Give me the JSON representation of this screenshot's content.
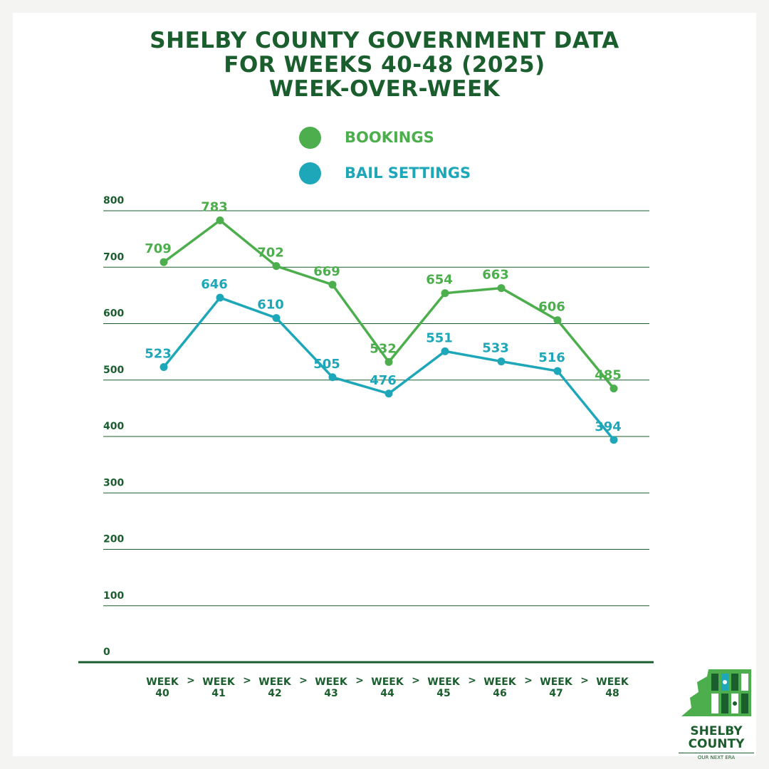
{
  "title": {
    "line1": "SHELBY COUNTY GOVERNMENT DATA",
    "line2": "FOR WEEKS 40-48 (2025)",
    "line3": "WEEK-OVER-WEEK"
  },
  "colors": {
    "bookings": "#4cae4c",
    "bail_settings": "#1ea7b8",
    "text_dark_green": "#1b5e2e",
    "grid": "#1b5e2e"
  },
  "legend": [
    {
      "label": "BOOKINGS",
      "color": "#4cae4c"
    },
    {
      "label": "BAIL SETTINGS",
      "color": "#1ea7b8"
    }
  ],
  "chart_data": {
    "type": "line",
    "categories": [
      [
        "WEEK",
        "40"
      ],
      [
        "WEEK",
        "41"
      ],
      [
        "WEEK",
        "42"
      ],
      [
        "WEEK",
        "43"
      ],
      [
        "WEEK",
        "44"
      ],
      [
        "WEEK",
        "45"
      ],
      [
        "WEEK",
        "46"
      ],
      [
        "WEEK",
        "47"
      ],
      [
        "WEEK",
        "48"
      ]
    ],
    "series": [
      {
        "name": "BOOKINGS",
        "color": "#4cae4c",
        "values": [
          709,
          783,
          702,
          669,
          532,
          654,
          663,
          606,
          485
        ]
      },
      {
        "name": "BAIL SETTINGS",
        "color": "#1ea7b8",
        "values": [
          523,
          646,
          610,
          505,
          476,
          551,
          533,
          516,
          394
        ]
      }
    ],
    "yticks": [
      0,
      100,
      200,
      300,
      400,
      500,
      600,
      700,
      800
    ],
    "ylim": [
      0,
      800
    ],
    "grid": true,
    "legend_position": "top-center",
    "category_separator": ">"
  },
  "logo": {
    "name_line1": "SHELBY",
    "name_line2": "COUNTY",
    "tagline": "OUR NEXT ERA"
  }
}
